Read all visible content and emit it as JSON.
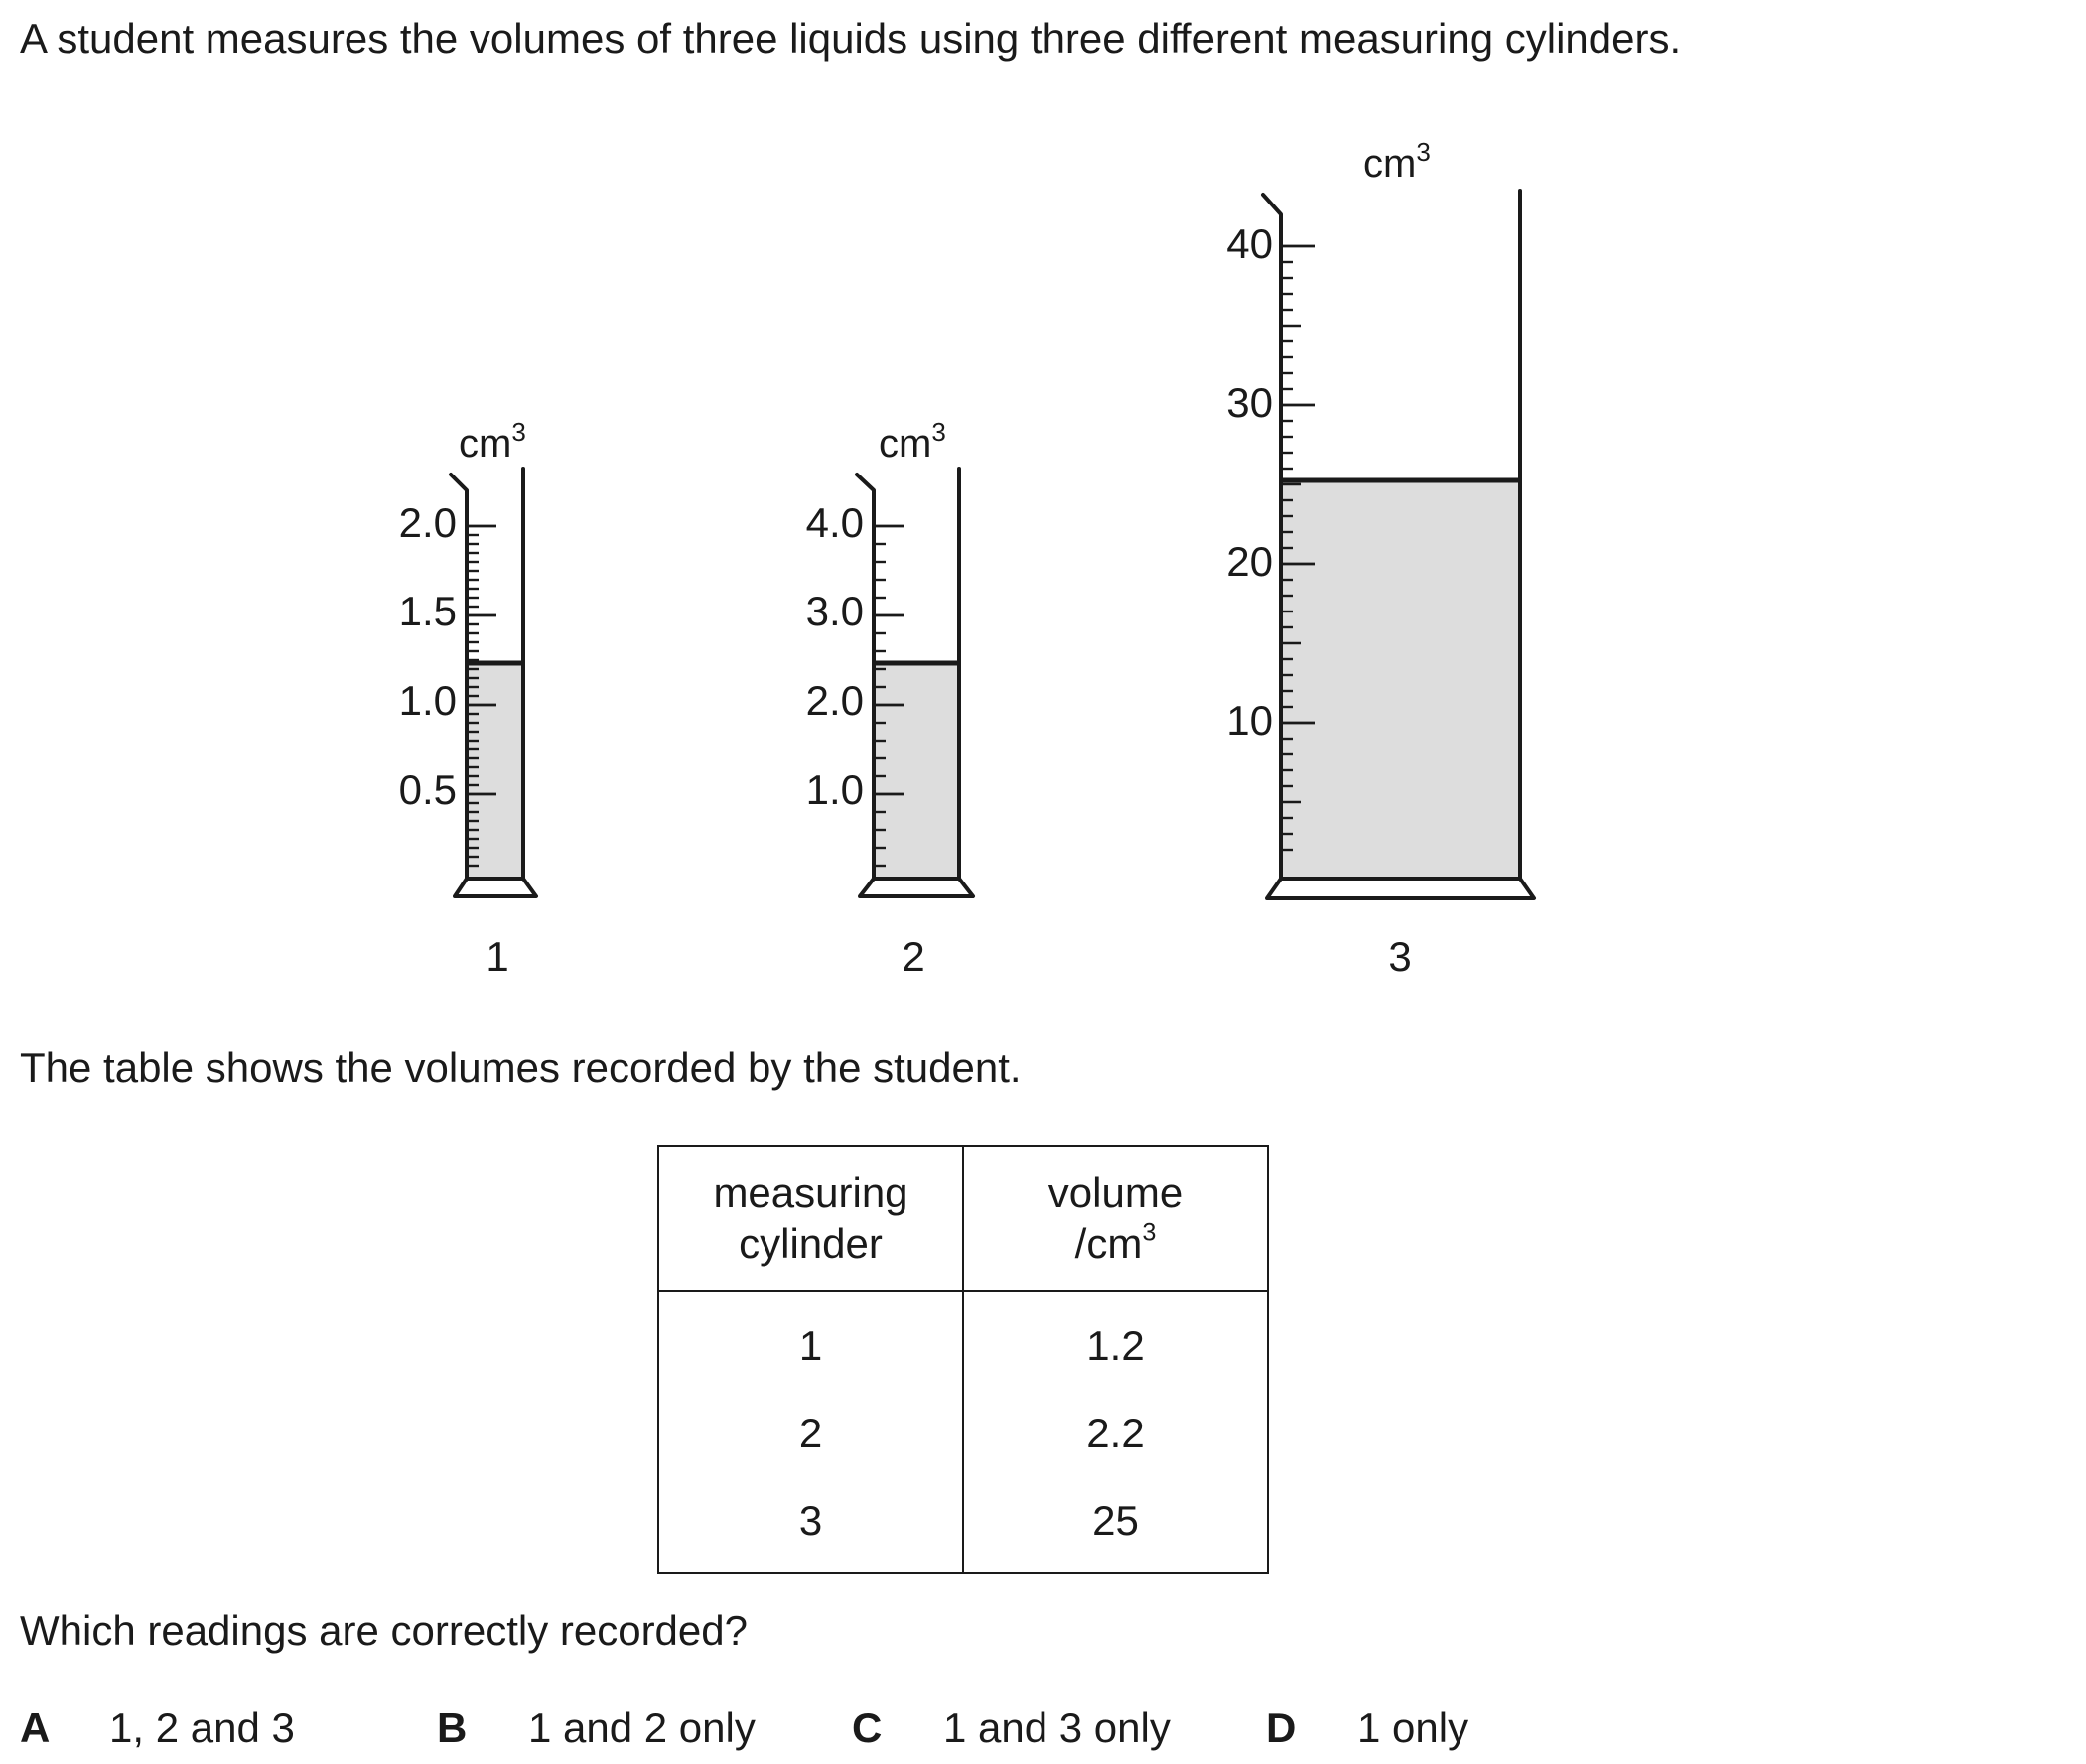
{
  "intro_text": "A student measures the volumes of three liquids using three different measuring cylinders.",
  "cylinders": [
    {
      "number": "1",
      "unit": "cm",
      "unit_sup": "3",
      "scale_labels": [
        "2.0",
        "1.5",
        "1.0",
        "0.5"
      ]
    },
    {
      "number": "2",
      "unit": "cm",
      "unit_sup": "3",
      "scale_labels": [
        "4.0",
        "3.0",
        "2.0",
        "1.0"
      ]
    },
    {
      "number": "3",
      "unit": "cm",
      "unit_sup": "3",
      "scale_labels": [
        "40",
        "30",
        "20",
        "10"
      ]
    }
  ],
  "table_intro": "The table shows the volumes recorded by the student.",
  "table": {
    "header_col1_line1": "measuring",
    "header_col1_line2": "cylinder",
    "header_col2_line1": "volume",
    "header_col2_line2": "/cm",
    "header_col2_sup": "3",
    "rows": [
      {
        "cylinder": "1",
        "volume": "1.2"
      },
      {
        "cylinder": "2",
        "volume": "2.2"
      },
      {
        "cylinder": "3",
        "volume": "25"
      }
    ]
  },
  "question": "Which readings are correctly recorded?",
  "options": [
    {
      "letter": "A",
      "text": "1, 2 and 3"
    },
    {
      "letter": "B",
      "text": "1 and 2 only"
    },
    {
      "letter": "C",
      "text": "1 and 3 only"
    },
    {
      "letter": "D",
      "text": "1 only"
    }
  ]
}
